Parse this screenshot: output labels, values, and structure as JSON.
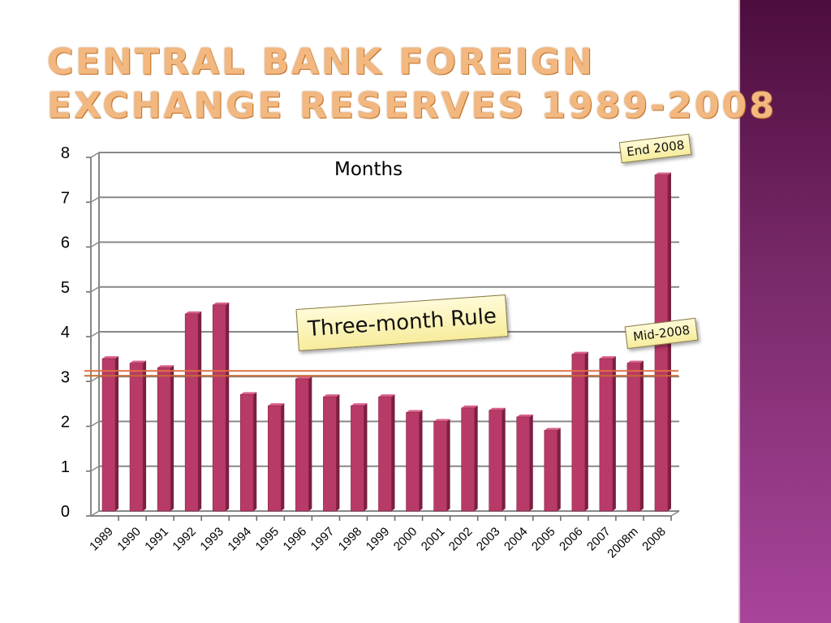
{
  "slide": {
    "title_line1": "Central Bank Foreign",
    "title_line2": "Exchange Reserves 1989-2008",
    "accent_colors": {
      "title": "#f2b880",
      "side_band": "#7a2a6a",
      "bars": "#b83a68",
      "rule_line": "#e07040"
    }
  },
  "chart_data": {
    "type": "bar",
    "title": "",
    "ylabel": "Months",
    "xlabel": "",
    "ylim": [
      0,
      8
    ],
    "yticks": [
      0,
      1,
      2,
      3,
      4,
      5,
      6,
      7,
      8
    ],
    "grid": true,
    "categories": [
      "1989",
      "1990",
      "1991",
      "1992",
      "1993",
      "1994",
      "1995",
      "1996",
      "1997",
      "1998",
      "1999",
      "2000",
      "2001",
      "2002",
      "2003",
      "2004",
      "2005",
      "2006",
      "2007",
      "2008m",
      "2008"
    ],
    "values": [
      3.4,
      3.3,
      3.2,
      4.4,
      4.6,
      2.6,
      2.35,
      2.95,
      2.55,
      2.35,
      2.55,
      2.2,
      2.0,
      2.3,
      2.25,
      2.1,
      1.8,
      3.5,
      3.4,
      3.3,
      7.5
    ],
    "reference_line": {
      "value": 3,
      "label": "Three-month Rule"
    },
    "annotations": [
      {
        "category": "2008",
        "label": "End 2008"
      },
      {
        "category": "2008m",
        "label": "Mid-2008"
      }
    ]
  }
}
